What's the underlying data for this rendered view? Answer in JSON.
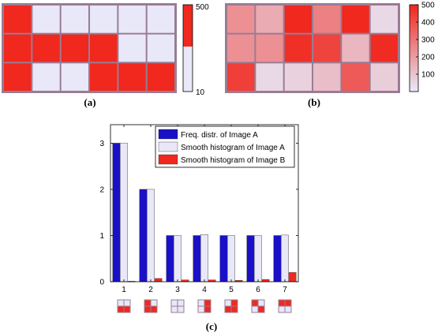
{
  "colors": {
    "red": "#f0281e",
    "lavender": "#e8e8f8",
    "blue": "#1a10c8",
    "border": "#a07890",
    "grid_line": "#9a7c94"
  },
  "panel_labels": {
    "a": "(a)",
    "b": "(b)",
    "c": "(c)"
  },
  "chart_data": [
    {
      "id": "a",
      "type": "heatmap",
      "rows": 3,
      "cols": 6,
      "values": [
        [
          500,
          10,
          10,
          10,
          10,
          10
        ],
        [
          500,
          500,
          500,
          500,
          10,
          10
        ],
        [
          500,
          10,
          10,
          500,
          500,
          500
        ]
      ],
      "colorbar": {
        "min": 10,
        "max": 500,
        "ticks": [
          "500",
          "10"
        ]
      }
    },
    {
      "id": "b",
      "type": "heatmap",
      "rows": 3,
      "cols": 6,
      "values": [
        [
          230,
          160,
          500,
          270,
          500,
          40
        ],
        [
          230,
          230,
          480,
          430,
          130,
          490
        ],
        [
          440,
          40,
          60,
          110,
          370,
          70
        ]
      ],
      "colorbar": {
        "min": 0,
        "max": 500,
        "ticks": [
          "500",
          "400",
          "300",
          "200",
          "100"
        ]
      }
    },
    {
      "id": "c",
      "type": "bar",
      "categories": [
        "1",
        "2",
        "3",
        "4",
        "5",
        "6",
        "7"
      ],
      "series": [
        {
          "name": "Freq. distr. of Image A",
          "color": "blue",
          "values": [
            3,
            2,
            1,
            1,
            1,
            1,
            1
          ]
        },
        {
          "name": "Smooth histogram of Image A",
          "color": "lavender",
          "values": [
            3.0,
            2.0,
            1.0,
            1.02,
            1.0,
            1.0,
            1.01
          ]
        },
        {
          "name": "Smooth histogram of Image B",
          "color": "red",
          "values": [
            0.01,
            0.07,
            0.04,
            0.04,
            0.03,
            0.05,
            0.2
          ]
        }
      ],
      "ylim": [
        0,
        3.4
      ],
      "yticks": [
        "0",
        "1",
        "2",
        "3"
      ],
      "legend_position": "top-center",
      "patterns": [
        [
          "L",
          "L",
          "R",
          "R"
        ],
        [
          "R",
          "L",
          "R",
          "R"
        ],
        [
          "L",
          "L",
          "L",
          "L"
        ],
        [
          "L",
          "R",
          "L",
          "R"
        ],
        [
          "L",
          "R",
          "R",
          "R"
        ],
        [
          "R",
          "L",
          "L",
          "R"
        ],
        [
          "R",
          "R",
          "L",
          "L"
        ]
      ]
    }
  ]
}
